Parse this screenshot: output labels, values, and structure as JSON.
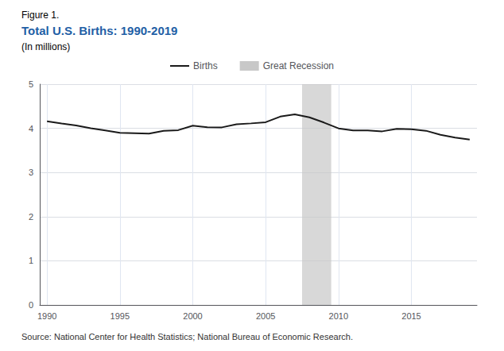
{
  "chart_data": {
    "type": "line",
    "figure_label": "Figure 1.",
    "title": "Total U.S. Births: 1990-2019",
    "title_color": "#1F5FA6",
    "subtitle": "(In millions)",
    "source": "Source: National Center for Health Statistics; National Bureau of Economic Research.",
    "x": [
      1990,
      1991,
      1992,
      1993,
      1994,
      1995,
      1996,
      1997,
      1998,
      1999,
      2000,
      2001,
      2002,
      2003,
      2004,
      2005,
      2006,
      2007,
      2008,
      2009,
      2010,
      2011,
      2012,
      2013,
      2014,
      2015,
      2016,
      2017,
      2018,
      2019
    ],
    "series": [
      {
        "name": "Births",
        "color": "#1a1a1a",
        "values": [
          4.158,
          4.111,
          4.065,
          4.0,
          3.953,
          3.9,
          3.891,
          3.881,
          3.942,
          3.959,
          4.059,
          4.026,
          4.022,
          4.09,
          4.112,
          4.138,
          4.266,
          4.317,
          4.248,
          4.131,
          3.999,
          3.954,
          3.953,
          3.932,
          3.988,
          3.978,
          3.945,
          3.853,
          3.791,
          3.745
        ]
      }
    ],
    "bands": [
      {
        "name": "Great Recession",
        "start": 2007.5,
        "end": 2009.5,
        "color": "#c8c8c8"
      }
    ],
    "xlim": [
      1989.5,
      2019.5
    ],
    "xticks": [
      1990,
      1995,
      2000,
      2005,
      2010,
      2015
    ],
    "ylim": [
      0,
      5
    ],
    "yticks": [
      0,
      1,
      2,
      3,
      4,
      5
    ],
    "grid": true,
    "legend": "top"
  }
}
